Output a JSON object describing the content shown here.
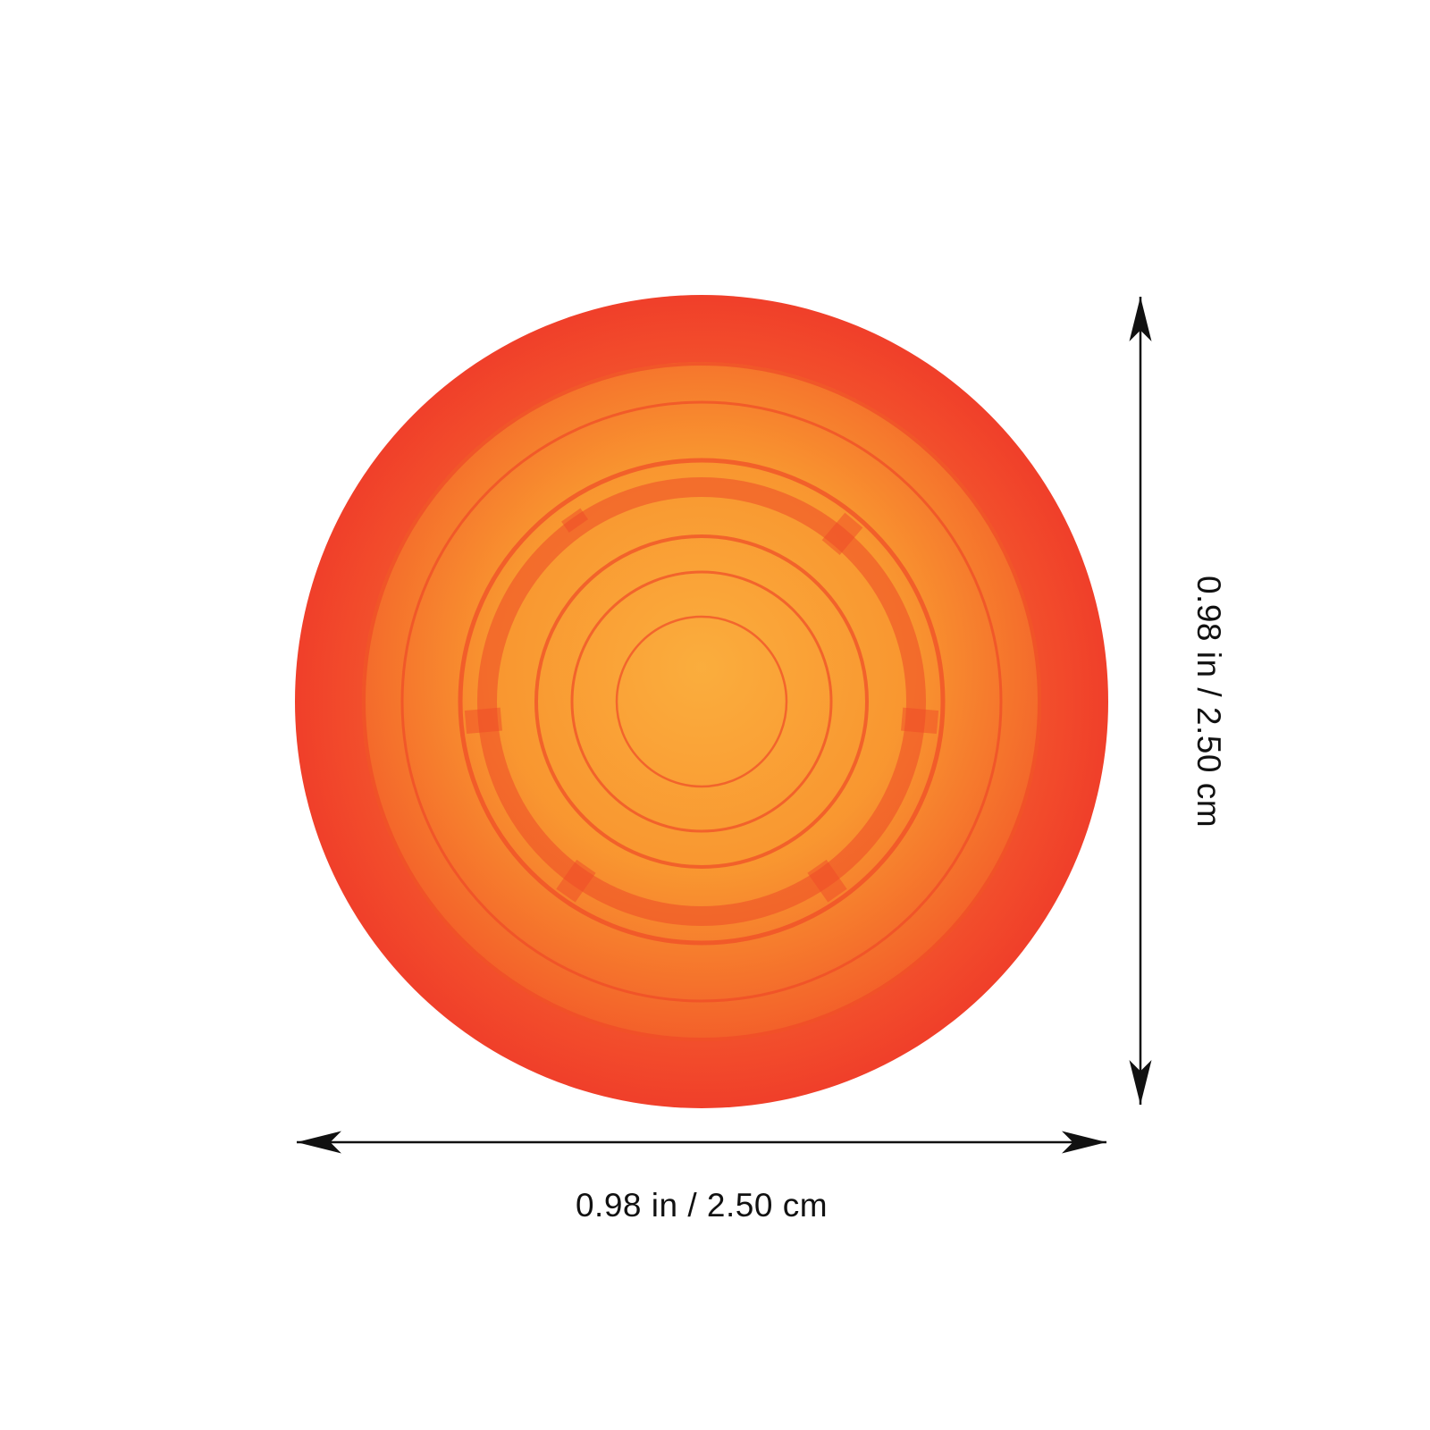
{
  "product": {
    "shape": "round cap",
    "colors": {
      "rim": "#f4442b",
      "inner": "#f9a233",
      "rings": "#f0502a"
    }
  },
  "dimensions": {
    "width_label": "0.98 in / 2.50 cm",
    "height_label": "0.98 in / 2.50 cm"
  }
}
